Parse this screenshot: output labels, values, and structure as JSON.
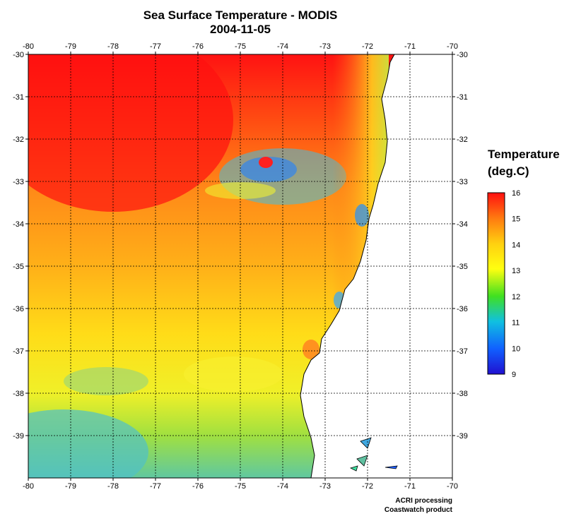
{
  "title": "Sea Surface Temperature - MODIS",
  "date": "2004-11-05",
  "map": {
    "lon_labels": [
      "-80",
      "-79",
      "-78",
      "-77",
      "-76",
      "-75",
      "-74",
      "-73",
      "-72",
      "-71",
      "-70"
    ],
    "lat_labels": [
      "-30",
      "-31",
      "-32",
      "-33",
      "-34",
      "-35",
      "-36",
      "-37",
      "-38",
      "-39"
    ],
    "lon_range": [
      -80,
      -70
    ],
    "lat_range": [
      -40,
      -30
    ],
    "grid": "dotted",
    "land_color": "#ffffff",
    "coast_color": "#000000"
  },
  "legend": {
    "title_line1": "Temperature",
    "title_line2": "(deg.C)",
    "labels": [
      "16",
      "15",
      "14",
      "13",
      "12",
      "11",
      "10",
      "9"
    ],
    "min": 9,
    "max": 16,
    "colors": [
      "#ff1010",
      "#ff7a10",
      "#ffd010",
      "#ffff10",
      "#40e020",
      "#10c0e0",
      "#1060ff",
      "#2010d0"
    ]
  },
  "credit": {
    "line1": "ACRI processing",
    "line2": "Coastwatch product"
  }
}
